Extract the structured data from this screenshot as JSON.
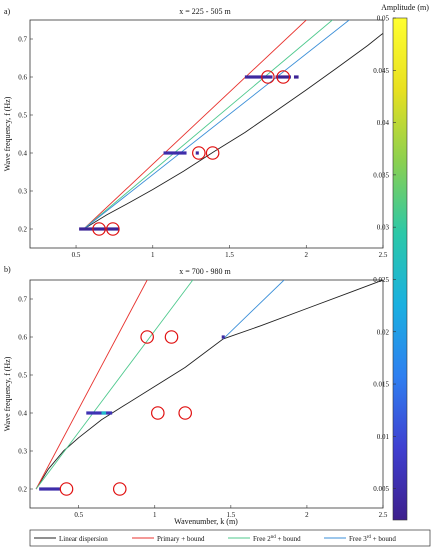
{
  "chart_data": [
    {
      "type": "line",
      "panel_label": "a)",
      "title": "x = 225 - 505 m",
      "xlabel": "",
      "ylabel": "Wave frequency, f (Hz)",
      "xlim": [
        0.2,
        2.5
      ],
      "ylim": [
        0.15,
        0.75
      ],
      "xticks": [
        "0.5",
        "1",
        "1.5",
        "2",
        "2.5"
      ],
      "xtick_values": [
        0.5,
        1,
        1.5,
        2,
        2.5
      ],
      "yticks": [
        "0.2",
        "0.3",
        "0.4",
        "0.5",
        "0.6",
        "0.7"
      ],
      "ytick_values": [
        0.2,
        0.3,
        0.4,
        0.5,
        0.6,
        0.7
      ],
      "series": [
        {
          "name": "Linear dispersion",
          "color": "#222222",
          "x": [
            0.55,
            0.7,
            0.85,
            1.0,
            1.2,
            1.4,
            1.6,
            1.8,
            2.0,
            2.2,
            2.4,
            2.5
          ],
          "y": [
            0.2,
            0.237,
            0.27,
            0.304,
            0.352,
            0.404,
            0.454,
            0.51,
            0.566,
            0.624,
            0.683,
            0.715
          ]
        },
        {
          "name": "Primary + bound",
          "color": "#e8332f",
          "x": [
            0.55,
            2.0
          ],
          "y": [
            0.2,
            0.75
          ]
        },
        {
          "name": "Free 2nd + bound",
          "color": "#4fc98e",
          "x": [
            0.55,
            2.17
          ],
          "y": [
            0.2,
            0.75
          ]
        },
        {
          "name": "Free 3rd + bound",
          "color": "#3b8fd8",
          "x": [
            0.55,
            2.28
          ],
          "y": [
            0.2,
            0.75
          ]
        }
      ],
      "spectral_peaks": [
        {
          "x0": 0.52,
          "x1": 0.78,
          "y": 0.2,
          "amplitude": 0.003
        },
        {
          "x0": 1.07,
          "x1": 1.22,
          "y": 0.4,
          "amplitude": 0.005
        },
        {
          "x0": 1.28,
          "x1": 1.3,
          "y": 0.4,
          "amplitude": 0.004
        },
        {
          "x0": 1.6,
          "x1": 1.78,
          "y": 0.6,
          "amplitude": 0.004
        },
        {
          "x0": 1.8,
          "x1": 1.9,
          "y": 0.6,
          "amplitude": 0.003
        },
        {
          "x0": 1.92,
          "x1": 1.95,
          "y": 0.6,
          "amplitude": 0.003
        }
      ],
      "circles": [
        {
          "x": 0.65,
          "y": 0.2
        },
        {
          "x": 0.74,
          "y": 0.2
        },
        {
          "x": 1.3,
          "y": 0.4
        },
        {
          "x": 1.39,
          "y": 0.4
        },
        {
          "x": 1.75,
          "y": 0.6
        },
        {
          "x": 1.85,
          "y": 0.6
        }
      ]
    },
    {
      "type": "line",
      "panel_label": "b)",
      "title": "x = 700 - 980 m",
      "xlabel": "Wavenumber, k (m)",
      "ylabel": "Wave frequency, f (Hz)",
      "xlim": [
        0.18,
        2.5
      ],
      "ylim": [
        0.15,
        0.75
      ],
      "xticks": [
        "0.5",
        "1",
        "1.5",
        "2",
        "2.5"
      ],
      "xtick_values": [
        0.5,
        1,
        1.5,
        2,
        2.5
      ],
      "yticks": [
        "0.2",
        "0.3",
        "0.4",
        "0.5",
        "0.6",
        "0.7"
      ],
      "ytick_values": [
        0.2,
        0.3,
        0.4,
        0.5,
        0.6,
        0.7
      ],
      "series": [
        {
          "name": "Linear dispersion",
          "color": "#222222",
          "x": [
            0.22,
            0.3,
            0.4,
            0.5,
            0.65,
            0.8,
            1.0,
            1.2,
            1.45,
            1.7,
            2.0,
            2.3,
            2.5
          ],
          "y": [
            0.2,
            0.252,
            0.3,
            0.335,
            0.382,
            0.42,
            0.47,
            0.52,
            0.595,
            0.63,
            0.675,
            0.72,
            0.75
          ]
        },
        {
          "name": "Primary + bound",
          "color": "#e8332f",
          "x": [
            0.22,
            0.95
          ],
          "y": [
            0.2,
            0.75
          ]
        },
        {
          "name": "Free 2nd + bound",
          "color": "#4fc98e",
          "x": [
            0.22,
            1.25
          ],
          "y": [
            0.2,
            0.75
          ]
        },
        {
          "name": "Free 3rd + bound",
          "color": "#3b8fd8",
          "x": [
            1.45,
            1.85
          ],
          "y": [
            0.595,
            0.75
          ]
        }
      ],
      "spectral_peaks": [
        {
          "x0": 0.24,
          "x1": 0.38,
          "y": 0.2,
          "amplitude": 0.005
        },
        {
          "x0": 0.55,
          "x1": 0.72,
          "y": 0.4,
          "amplitude": 0.006
        },
        {
          "x0": 0.65,
          "x1": 0.68,
          "y": 0.4,
          "amplitude": 0.025
        },
        {
          "x0": 1.44,
          "x1": 1.46,
          "y": 0.6,
          "amplitude": 0.004
        }
      ],
      "circles": [
        {
          "x": 0.42,
          "y": 0.2
        },
        {
          "x": 0.77,
          "y": 0.2
        },
        {
          "x": 1.02,
          "y": 0.4
        },
        {
          "x": 1.2,
          "y": 0.4
        },
        {
          "x": 0.95,
          "y": 0.6
        },
        {
          "x": 1.11,
          "y": 0.6
        }
      ]
    }
  ],
  "colorbar": {
    "title": "Amplitude (m)",
    "min": 0.002,
    "max": 0.05,
    "ticks": [
      "0.005",
      "0.01",
      "0.015",
      "0.02",
      "0.025",
      "0.03",
      "0.035",
      "0.04",
      "0.045",
      "0.05"
    ],
    "tick_values": [
      0.005,
      0.01,
      0.015,
      0.02,
      0.025,
      0.03,
      0.035,
      0.04,
      0.045,
      0.05
    ],
    "stops": [
      "#3d1f8c",
      "#3f3fd0",
      "#2f7ff0",
      "#1ab0e0",
      "#2cc8a8",
      "#8bd050",
      "#e8e020",
      "#ffff30"
    ]
  },
  "legend": [
    {
      "label": "Linear dispersion",
      "color": "#222222"
    },
    {
      "label": "Primary + bound",
      "color": "#e8332f"
    },
    {
      "label_main": "Free 2",
      "label_sup": "nd",
      "label_tail": " + bound",
      "color": "#4fc98e"
    },
    {
      "label_main": "Free 3",
      "label_sup": "rd",
      "label_tail": " + bound",
      "color": "#3b8fd8"
    }
  ]
}
